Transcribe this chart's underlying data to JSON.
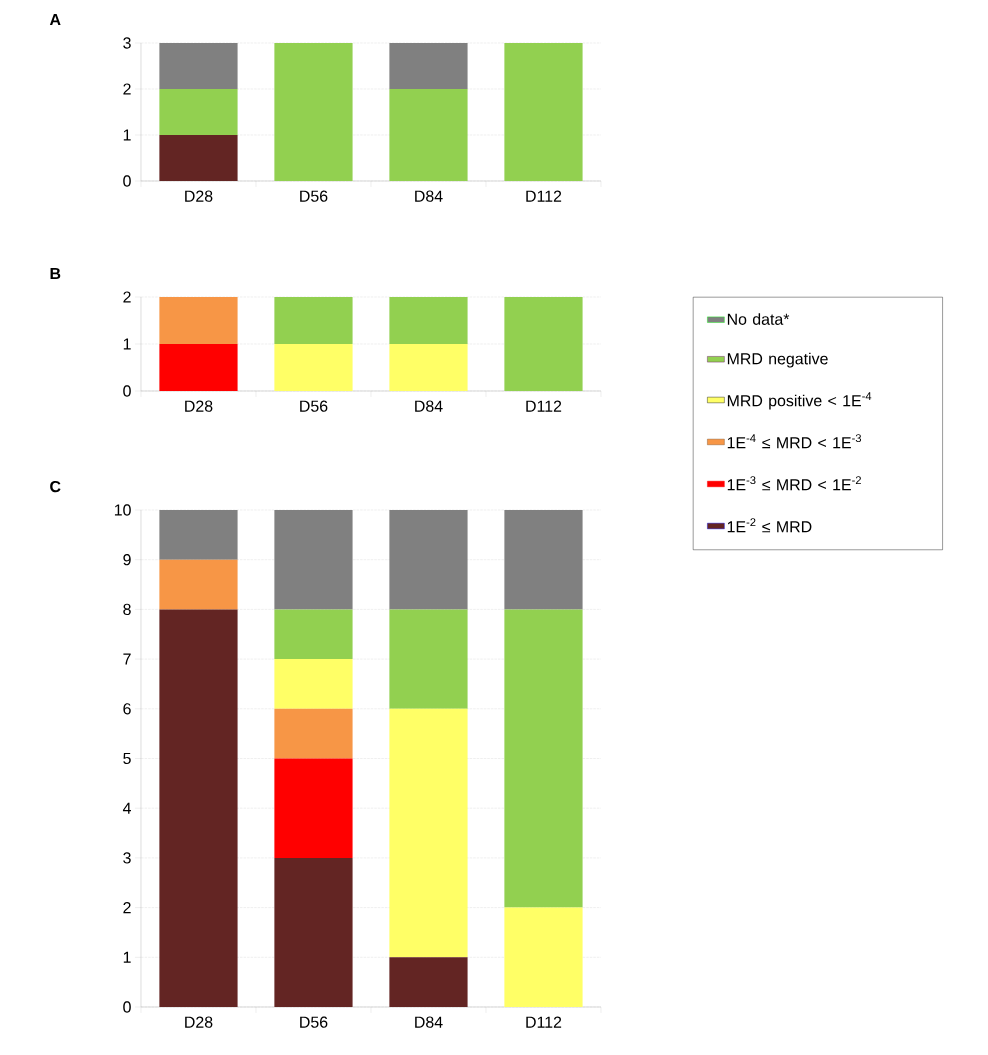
{
  "chart_data": [
    {
      "type": "bar",
      "title": "A",
      "stacked": true,
      "grid": "y",
      "categories": [
        "D28",
        "D56",
        "D84",
        "D112"
      ],
      "ylim": [
        0,
        3
      ],
      "yticks": [
        0,
        1,
        2,
        3
      ],
      "series": [
        {
          "color": "#632523",
          "values": [
            1,
            0,
            0,
            0
          ]
        },
        {
          "color": "#92d050",
          "values": [
            1,
            3,
            2,
            3
          ]
        },
        {
          "color": "#808080",
          "values": [
            1,
            0,
            1,
            0
          ]
        }
      ]
    },
    {
      "type": "bar",
      "title": "B",
      "stacked": true,
      "grid": "y",
      "categories": [
        "D28",
        "D56",
        "D84",
        "D112"
      ],
      "ylim": [
        0,
        2
      ],
      "yticks": [
        0,
        1,
        2
      ],
      "series": [
        {
          "color": "#ff0000",
          "values": [
            1,
            0,
            0,
            0
          ]
        },
        {
          "color": "#f79646",
          "values": [
            1,
            0,
            0,
            0
          ]
        },
        {
          "color": "#ffff66",
          "values": [
            0,
            1,
            1,
            0
          ]
        },
        {
          "color": "#92d050",
          "values": [
            0,
            1,
            1,
            2
          ]
        }
      ]
    },
    {
      "type": "bar",
      "title": "C",
      "stacked": true,
      "grid": "y",
      "legend": "right",
      "categories": [
        "D28",
        "D56",
        "D84",
        "D112"
      ],
      "ylim": [
        0,
        10
      ],
      "yticks": [
        0,
        1,
        2,
        3,
        4,
        5,
        6,
        7,
        8,
        9,
        10
      ],
      "series": [
        {
          "name": "1E$^{-2}$ ≤ MRD",
          "color": "#632523",
          "values": [
            8,
            3,
            1,
            0
          ]
        },
        {
          "name": "1E$^{-3}$ ≤ MRD < 1E$^{-2}$",
          "color": "#ff0000",
          "values": [
            0,
            2,
            0,
            0
          ]
        },
        {
          "name": "1E$^{-4}$ ≤ MRD < 1E$^{-3}$",
          "color": "#f79646",
          "values": [
            1,
            1,
            0,
            0
          ]
        },
        {
          "name": "MRD positive < 1E$^{-4}$",
          "color": "#ffff66",
          "values": [
            0,
            1,
            5,
            2
          ]
        },
        {
          "name": "MRD negative",
          "color": "#92d050",
          "values": [
            0,
            1,
            2,
            6
          ]
        },
        {
          "name": "No data*",
          "color": "#808080",
          "values": [
            1,
            2,
            2,
            2
          ]
        }
      ]
    }
  ]
}
